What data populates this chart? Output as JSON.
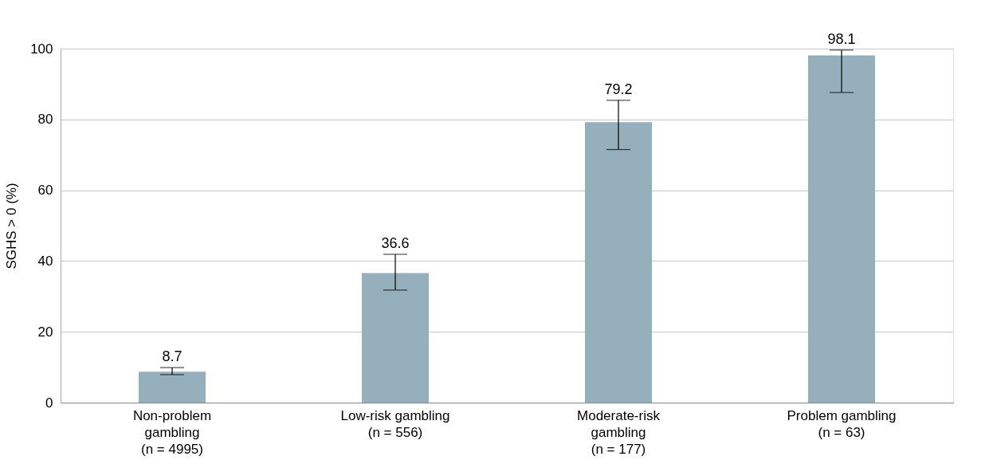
{
  "chart_data": {
    "type": "bar",
    "ylabel": "SGHS > 0 (%)",
    "categories": [
      "Non-problem\ngambling\n(n = 4995)",
      "Low-risk gambling\n(n = 556)",
      "Moderate-risk\ngambling\n(n = 177)",
      "Problem gambling\n(n = 63)"
    ],
    "values": [
      8.7,
      36.6,
      79.2,
      98.1
    ],
    "errors": [
      [
        7.9,
        9.9
      ],
      [
        31.8,
        41.9
      ],
      [
        71.5,
        85.4
      ],
      [
        87.6,
        99.6
      ]
    ],
    "color": "#95afbd",
    "ylim": [
      0,
      100
    ],
    "yticks": [
      0,
      20,
      40,
      60,
      80,
      100
    ],
    "grid": "y",
    "data_labels": true
  }
}
